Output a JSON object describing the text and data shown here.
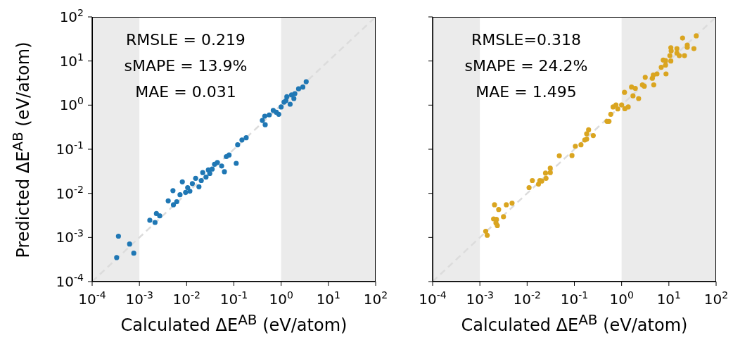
{
  "chart_data": [
    {
      "type": "scatter",
      "xlabel": "Calculated ΔE$^{AB}$ (eV/atom)",
      "ylabel": "Predicted ΔE$^{AB}$ (eV/atom)",
      "log": "xy",
      "marker": "circle",
      "xlim": [
        0.0001,
        100
      ],
      "ylim": [
        0.0001,
        100
      ],
      "xticks": [
        {
          "value": 0.0001,
          "label": "10$^{-4}$"
        },
        {
          "value": 0.001,
          "label": "10$^{-3}$"
        },
        {
          "value": 0.01,
          "label": "10$^{-2}$"
        },
        {
          "value": 0.1,
          "label": "10$^{-1}$"
        },
        {
          "value": 1,
          "label": "10$^{0}$"
        },
        {
          "value": 10,
          "label": "10$^{1}$"
        },
        {
          "value": 100,
          "label": "10$^{2}$"
        }
      ],
      "yticks": [
        {
          "value": 0.0001,
          "label": "10$^{-4}$"
        },
        {
          "value": 0.001,
          "label": "10$^{-3}$"
        },
        {
          "value": 0.01,
          "label": "10$^{-2}$"
        },
        {
          "value": 0.1,
          "label": "10$^{-1}$"
        },
        {
          "value": 1,
          "label": "10$^{0}$"
        },
        {
          "value": 10,
          "label": "10$^{1}$"
        },
        {
          "value": 100,
          "label": "10$^{2}$"
        }
      ],
      "annotations": [
        "RMSLE = 0.219",
        "sMAPE = 13.9%",
        "MAE = 0.031"
      ],
      "bands": [
        {
          "axis": "x",
          "from": 0.0001,
          "to": 0.001,
          "color": "#ebebeb"
        },
        {
          "axis": "x",
          "from": 1,
          "to": 100,
          "color": "#ebebeb"
        }
      ],
      "series": [
        {
          "type": "line",
          "line_style": "dashed",
          "marker": "none",
          "color": "#dcdcdc",
          "x": [
            0.0001,
            100
          ],
          "values": [
            0.0001,
            100
          ]
        },
        {
          "color": "#1f77b4",
          "x": [
            0.00033,
            0.00036,
            0.00062,
            0.00076,
            0.00166,
            0.00214,
            0.00229,
            0.00269,
            0.00407,
            0.00513,
            0.00525,
            0.00617,
            0.00724,
            0.0081,
            0.0095,
            0.0117,
            0.0132,
            0.0155,
            0.0182,
            0.0219,
            0.0257,
            0.0309,
            0.0389,
            0.0447,
            0.055,
            0.063,
            0.069,
            0.079,
            0.112,
            0.12,
            0.148,
            0.182,
            0.4,
            0.46,
            0.45,
            0.56,
            0.68,
            0.79,
            0.89,
            1.0,
            1.15,
            1.32,
            1.55,
            1.86,
            1.95,
            2.34,
            2.88,
            3.39,
            0.0105,
            0.0204,
            0.0288,
            0.0347,
            1.26,
            1.66
          ],
          "values": [
            0.00035,
            0.00107,
            0.00071,
            0.00044,
            0.00245,
            0.00219,
            0.00347,
            0.00309,
            0.00676,
            0.0115,
            0.0055,
            0.00646,
            0.0093,
            0.0182,
            0.0105,
            0.0112,
            0.0166,
            0.0219,
            0.0141,
            0.0295,
            0.0234,
            0.0282,
            0.0457,
            0.0501,
            0.0417,
            0.0309,
            0.068,
            0.074,
            0.048,
            0.126,
            0.162,
            0.182,
            0.45,
            0.36,
            0.56,
            0.6,
            0.76,
            0.69,
            0.62,
            0.91,
            1.17,
            1.55,
            1.05,
            1.41,
            1.82,
            2.34,
            2.57,
            3.39,
            0.0135,
            0.0195,
            0.0339,
            0.0355,
            1.26,
            1.7
          ]
        }
      ]
    },
    {
      "type": "scatter",
      "xlabel": "Calculated ΔE$^{AB}$ (eV/atom)",
      "log": "xy",
      "marker": "circle",
      "tick_labels": "x",
      "xlim": [
        0.0001,
        100
      ],
      "ylim": [
        0.0001,
        100
      ],
      "xticks": [
        {
          "value": 0.0001,
          "label": "10$^{-4}$"
        },
        {
          "value": 0.001,
          "label": "10$^{-3}$"
        },
        {
          "value": 0.01,
          "label": "10$^{-2}$"
        },
        {
          "value": 0.1,
          "label": "10$^{-1}$"
        },
        {
          "value": 1,
          "label": "10$^{0}$"
        },
        {
          "value": 10,
          "label": "10$^{1}$"
        },
        {
          "value": 100,
          "label": "10$^{2}$"
        }
      ],
      "yticks": [
        {
          "value": 0.0001,
          "label": null
        },
        {
          "value": 0.001,
          "label": null
        },
        {
          "value": 0.01,
          "label": null
        },
        {
          "value": 0.1,
          "label": null
        },
        {
          "value": 1,
          "label": null
        },
        {
          "value": 10,
          "label": null
        },
        {
          "value": 100,
          "label": null
        }
      ],
      "annotations": [
        "RMSLE=0.318",
        "sMAPE = 24.2%",
        "MAE = 1.495"
      ],
      "bands": [
        {
          "axis": "x",
          "from": 0.0001,
          "to": 0.001,
          "color": "#ebebeb"
        },
        {
          "axis": "x",
          "from": 1,
          "to": 100,
          "color": "#ebebeb"
        }
      ],
      "series": [
        {
          "type": "line",
          "line_style": "dashed",
          "marker": "none",
          "color": "#dcdcdc",
          "x": [
            0.0001,
            100
          ],
          "values": [
            0.0001,
            100
          ]
        },
        {
          "color": "#daa520",
          "x": [
            0.00133,
            0.00143,
            0.00204,
            0.0025,
            0.00195,
            0.00224,
            0.00219,
            0.00234,
            0.00316,
            0.00363,
            0.0048,
            0.011,
            0.0129,
            0.0174,
            0.0186,
            0.0204,
            0.0251,
            0.0245,
            0.0309,
            0.0309,
            0.048,
            0.089,
            0.105,
            0.138,
            0.166,
            0.182,
            0.182,
            0.2,
            0.251,
            0.49,
            0.54,
            0.59,
            0.66,
            0.76,
            0.83,
            1.0,
            1.17,
            1.38,
            1.15,
            1.62,
            1.74,
            1.95,
            2.29,
            2.75,
            3.02,
            3.16,
            4.47,
            4.68,
            4.79,
            5.6,
            6.9,
            8.5,
            8.7,
            7.6,
            8.5,
            11.0,
            10.5,
            11.0,
            11.2,
            14.8,
            14.8,
            16.6,
            21.4,
            19.5,
            24.5,
            24.5,
            33.9,
            38.0
          ],
          "values": [
            0.00138,
            0.00112,
            0.0055,
            0.0043,
            0.00263,
            0.00257,
            0.00214,
            0.00186,
            0.00295,
            0.0055,
            0.006,
            0.0135,
            0.0195,
            0.0162,
            0.0195,
            0.019,
            0.0219,
            0.0288,
            0.0295,
            0.0372,
            0.071,
            0.072,
            0.117,
            0.126,
            0.162,
            0.17,
            0.224,
            0.275,
            0.204,
            0.43,
            0.43,
            0.62,
            0.91,
            1.01,
            0.82,
            1.01,
            0.83,
            0.91,
            1.95,
            2.57,
            1.62,
            2.4,
            1.41,
            2.88,
            2.69,
            4.27,
            4.07,
            4.79,
            2.88,
            5.1,
            7.2,
            8.1,
            5.1,
            10.5,
            10.2,
            10.0,
            13.2,
            20.0,
            17.0,
            19.1,
            15.1,
            13.2,
            13.2,
            33.1,
            22.9,
            20.4,
            19.1,
            37.2
          ]
        }
      ]
    }
  ]
}
